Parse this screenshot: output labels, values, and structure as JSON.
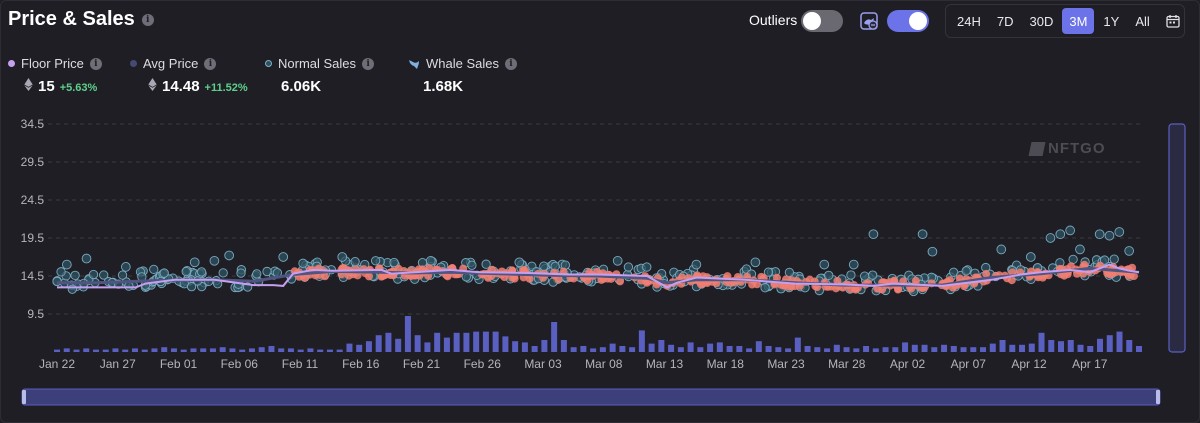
{
  "header": {
    "title": "Price & Sales",
    "outliers_label": "Outliers",
    "outliers_on": false,
    "whale_filter_on": true,
    "ranges": [
      "24H",
      "7D",
      "30D",
      "3M",
      "1Y",
      "All"
    ],
    "active_range": "3M",
    "icons": {
      "info": "info-icon",
      "whale_filter": "whale-filter-icon",
      "calendar": "calendar-icon"
    }
  },
  "legend": {
    "floor": {
      "label": "Floor Price",
      "value": "15",
      "change": "+5.63%",
      "color": "#c6a0f0"
    },
    "avg": {
      "label": "Avg Price",
      "value": "14.48",
      "change": "+11.52%",
      "color": "#454a75"
    },
    "normal": {
      "label": "Normal Sales",
      "value": "6.06K",
      "color": "#5b8ea8"
    },
    "whale": {
      "label": "Whale Sales",
      "value": "1.68K",
      "color": "#7fb0e0"
    }
  },
  "watermark": "NFTGO",
  "chart_data": {
    "type": "scatter",
    "ylim": [
      4.5,
      34.5
    ],
    "yticks": [
      34.5,
      29.5,
      24.5,
      19.5,
      14.5,
      9.5
    ],
    "xticks": [
      "Jan 22",
      "Jan 27",
      "Feb 01",
      "Feb 06",
      "Feb 11",
      "Feb 16",
      "Feb 21",
      "Feb 26",
      "Mar 03",
      "Mar 08",
      "Mar 13",
      "Mar 18",
      "Mar 23",
      "Mar 28",
      "Apr 02",
      "Apr 07",
      "Apr 12",
      "Apr 17"
    ],
    "grid": true,
    "colors": {
      "floor": "#c6a0f0",
      "avg": "#505480",
      "normal": "#4f8ba0",
      "whale": "#f07f73",
      "volume": "#5a5fc2"
    },
    "floor_price": {
      "x_days": [
        0,
        4,
        8,
        9,
        12,
        16,
        20,
        22,
        23,
        24,
        26,
        28,
        33,
        34,
        40,
        43,
        48,
        52,
        55,
        60,
        62,
        63,
        65,
        70,
        75,
        80,
        83,
        85,
        90,
        95,
        98,
        100,
        103,
        105,
        107,
        108,
        109,
        110
      ],
      "y": [
        13.0,
        13.0,
        13.0,
        13.5,
        14.0,
        14.0,
        13.3,
        13.3,
        13.2,
        14.8,
        15.3,
        15.2,
        15.3,
        14.8,
        15.3,
        15.0,
        14.9,
        14.7,
        14.7,
        14.5,
        13.0,
        13.6,
        14.3,
        14.0,
        13.5,
        13.4,
        13.2,
        13.5,
        13.2,
        14.0,
        14.7,
        15.0,
        15.3,
        15.0,
        16.0,
        15.5,
        15.2,
        15.0
      ]
    },
    "avg_price": {
      "x_days": [
        0,
        4,
        10,
        16,
        20,
        24,
        28,
        33,
        36,
        40,
        45,
        50,
        55,
        60,
        62,
        65,
        70,
        75,
        80,
        85,
        90,
        95,
        100,
        105,
        110
      ],
      "y": [
        13.6,
        13.6,
        13.9,
        14.0,
        13.8,
        14.7,
        15.1,
        15.0,
        14.9,
        15.0,
        14.8,
        14.6,
        14.5,
        14.2,
        13.6,
        14.0,
        14.0,
        13.6,
        13.3,
        13.3,
        13.3,
        14.3,
        14.8,
        15.5,
        15.0
      ]
    },
    "normal_sales_spread": 1.2,
    "normal_sales_outliers": [
      {
        "x_day": 1,
        "y": 16.0
      },
      {
        "x_day": 3,
        "y": 16.8
      },
      {
        "x_day": 7,
        "y": 15.7
      },
      {
        "x_day": 14,
        "y": 16.3
      },
      {
        "x_day": 16,
        "y": 16.5
      },
      {
        "x_day": 17.5,
        "y": 17.2
      },
      {
        "x_day": 23,
        "y": 17.0
      },
      {
        "x_day": 29,
        "y": 17.0
      },
      {
        "x_day": 38,
        "y": 16.5
      },
      {
        "x_day": 47,
        "y": 16.3
      },
      {
        "x_day": 57,
        "y": 16.5
      },
      {
        "x_day": 65,
        "y": 16.0
      },
      {
        "x_day": 71,
        "y": 16.3
      },
      {
        "x_day": 78,
        "y": 16.0
      },
      {
        "x_day": 81,
        "y": 16.0
      },
      {
        "x_day": 83,
        "y": 20.0
      },
      {
        "x_day": 88,
        "y": 20.0
      },
      {
        "x_day": 89,
        "y": 17.7
      },
      {
        "x_day": 96,
        "y": 18.0
      },
      {
        "x_day": 99,
        "y": 17.0
      },
      {
        "x_day": 101,
        "y": 19.5
      },
      {
        "x_day": 102,
        "y": 20.0
      },
      {
        "x_day": 103,
        "y": 20.5
      },
      {
        "x_day": 104,
        "y": 18.0
      },
      {
        "x_day": 106,
        "y": 20.0
      },
      {
        "x_day": 107,
        "y": 19.8
      },
      {
        "x_day": 108,
        "y": 20.3
      },
      {
        "x_day": 109,
        "y": 17.8
      }
    ],
    "whale_sales_days": [
      24,
      110
    ],
    "volume": {
      "ylim": [
        0,
        3
      ],
      "values": [
        0.2,
        0.3,
        0.2,
        0.3,
        0.2,
        0.2,
        0.3,
        0.2,
        0.3,
        0.2,
        0.3,
        0.4,
        0.3,
        0.2,
        0.3,
        0.3,
        0.3,
        0.4,
        0.3,
        0.2,
        0.3,
        0.4,
        0.5,
        0.3,
        0.3,
        0.2,
        0.3,
        0.2,
        0.2,
        0.2,
        0.7,
        0.6,
        0.9,
        1.4,
        1.6,
        1.1,
        3.0,
        1.4,
        0.8,
        1.6,
        1.2,
        1.6,
        1.6,
        1.7,
        1.7,
        1.7,
        1.3,
        0.9,
        0.8,
        0.5,
        1.0,
        2.5,
        1.0,
        0.4,
        0.5,
        0.3,
        0.4,
        0.7,
        0.5,
        0.4,
        1.8,
        0.7,
        1.0,
        0.6,
        0.4,
        0.8,
        0.4,
        0.7,
        0.8,
        0.5,
        0.5,
        0.3,
        0.9,
        0.5,
        0.4,
        0.3,
        1.2,
        0.5,
        0.4,
        0.3,
        0.6,
        0.4,
        0.3,
        0.5,
        0.3,
        0.4,
        0.4,
        0.8,
        0.6,
        0.6,
        0.4,
        0.6,
        0.5,
        0.4,
        0.4,
        0.4,
        0.7,
        1.0,
        0.6,
        0.6,
        0.7,
        1.6,
        1.0,
        0.9,
        1.0,
        0.6,
        0.5,
        1.1,
        1.4,
        1.7,
        1.0,
        0.5
      ]
    }
  }
}
